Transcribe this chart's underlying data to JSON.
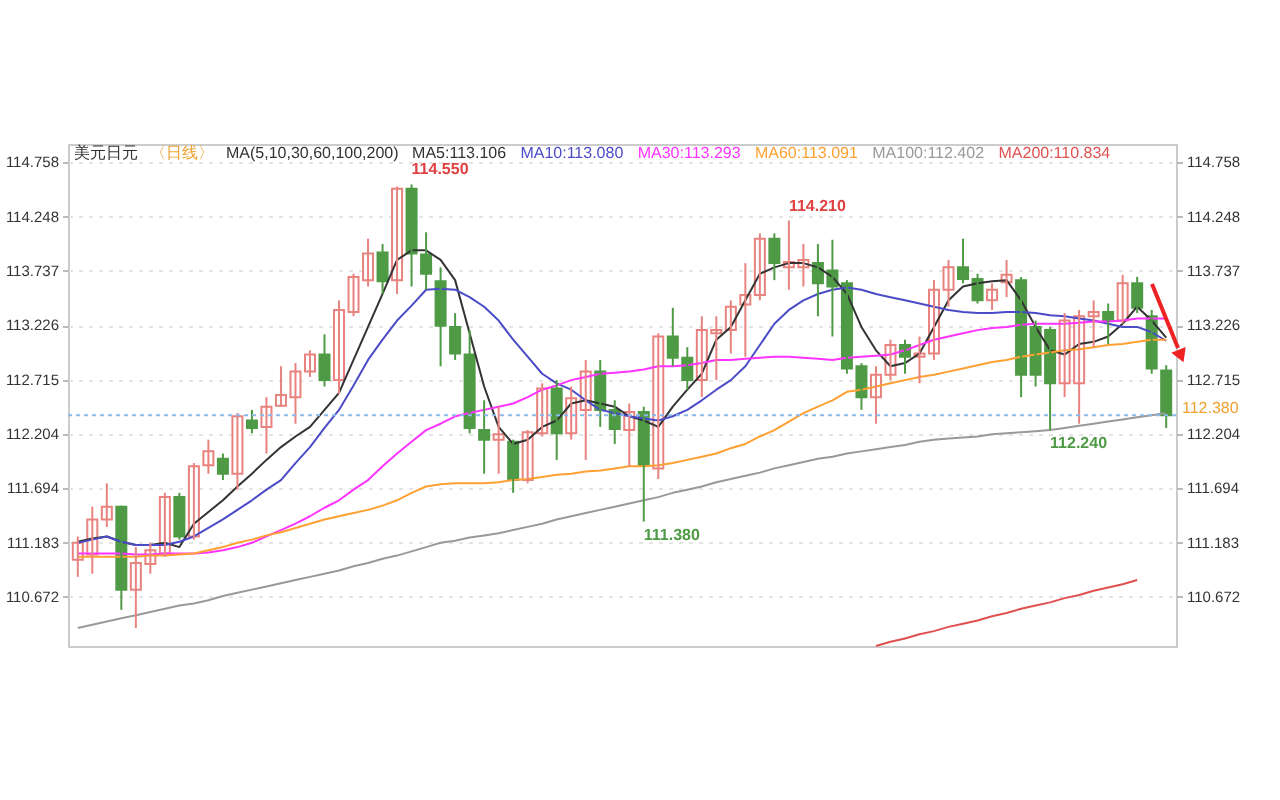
{
  "chart_data": {
    "type": "candlestick",
    "title": "美元日元",
    "subtitle": "〈日线〉",
    "annotations": [
      "MA(5,10,30,60,100,200)",
      "114.550",
      "111.380",
      "112.240",
      "114.210"
    ],
    "categories": [
      null,
      null,
      null,
      null,
      null,
      null,
      null,
      null,
      null,
      null,
      null,
      null,
      null,
      null,
      null,
      null,
      null,
      null,
      null,
      null,
      null,
      null,
      null,
      null,
      null,
      null,
      null,
      null,
      null,
      null,
      null,
      null,
      null,
      null,
      null,
      null,
      null,
      null,
      null,
      null,
      null,
      null,
      null,
      null,
      null,
      null,
      null,
      null,
      null,
      null,
      null,
      null,
      null,
      null,
      null,
      null,
      null,
      null,
      null,
      null,
      null,
      null,
      null,
      null,
      null,
      null,
      null,
      null,
      null,
      null,
      null,
      null,
      null,
      null,
      null,
      null
    ],
    "ohlc": [
      [
        111.02,
        111.24,
        110.86,
        111.18
      ],
      [
        111.07,
        111.52,
        110.89,
        111.4
      ],
      [
        111.4,
        111.74,
        111.33,
        111.52
      ],
      [
        111.52,
        111.53,
        110.55,
        110.74
      ],
      [
        110.74,
        111.14,
        110.38,
        110.99
      ],
      [
        110.98,
        111.18,
        110.89,
        111.11
      ],
      [
        111.08,
        111.65,
        111.05,
        111.61
      ],
      [
        111.61,
        111.65,
        111.21,
        111.24
      ],
      [
        111.24,
        111.93,
        111.21,
        111.9
      ],
      [
        111.91,
        112.15,
        111.83,
        112.04
      ],
      [
        111.97,
        112.02,
        111.77,
        111.83
      ],
      [
        111.83,
        112.4,
        111.68,
        112.37
      ],
      [
        112.33,
        112.43,
        112.21,
        112.26
      ],
      [
        112.27,
        112.55,
        112.02,
        112.46
      ],
      [
        112.47,
        112.84,
        112.46,
        112.57
      ],
      [
        112.55,
        112.87,
        112.3,
        112.79
      ],
      [
        112.79,
        112.99,
        112.74,
        112.95
      ],
      [
        112.95,
        113.14,
        112.65,
        112.71
      ],
      [
        112.71,
        113.46,
        112.58,
        113.37
      ],
      [
        113.35,
        113.71,
        113.31,
        113.68
      ],
      [
        113.65,
        114.04,
        113.59,
        113.9
      ],
      [
        113.91,
        113.99,
        113.52,
        113.64
      ],
      [
        113.65,
        114.53,
        113.52,
        114.51
      ],
      [
        114.51,
        114.55,
        113.59,
        113.9
      ],
      [
        113.89,
        114.1,
        113.56,
        113.71
      ],
      [
        113.64,
        113.77,
        112.84,
        113.22
      ],
      [
        113.21,
        113.34,
        112.9,
        112.96
      ],
      [
        112.95,
        113.18,
        112.21,
        112.26
      ],
      [
        112.24,
        112.52,
        111.83,
        112.15
      ],
      [
        112.15,
        112.46,
        111.83,
        112.2
      ],
      [
        112.13,
        112.15,
        111.65,
        111.77
      ],
      [
        111.77,
        112.24,
        111.74,
        112.22
      ],
      [
        112.21,
        112.68,
        112.18,
        112.63
      ],
      [
        112.63,
        112.71,
        111.96,
        112.21
      ],
      [
        112.21,
        112.65,
        112.15,
        112.54
      ],
      [
        112.43,
        112.9,
        111.96,
        112.79
      ],
      [
        112.79,
        112.9,
        112.27,
        112.43
      ],
      [
        112.43,
        112.52,
        112.11,
        112.25
      ],
      [
        112.24,
        112.49,
        111.9,
        112.41
      ],
      [
        112.41,
        112.46,
        111.38,
        111.91
      ],
      [
        111.88,
        113.15,
        111.78,
        113.12
      ],
      [
        113.12,
        113.39,
        112.84,
        112.92
      ],
      [
        112.92,
        113.02,
        112.62,
        112.71
      ],
      [
        112.71,
        113.31,
        112.55,
        113.18
      ],
      [
        113.15,
        113.31,
        112.71,
        113.18
      ],
      [
        113.18,
        113.46,
        112.96,
        113.4
      ],
      [
        113.42,
        113.81,
        112.93,
        113.51
      ],
      [
        113.51,
        114.09,
        113.46,
        114.04
      ],
      [
        114.04,
        114.09,
        113.65,
        113.81
      ],
      [
        113.77,
        114.21,
        113.56,
        113.82
      ],
      [
        113.77,
        113.99,
        113.59,
        113.84
      ],
      [
        113.81,
        113.99,
        113.31,
        113.62
      ],
      [
        113.74,
        114.03,
        113.12,
        113.59
      ],
      [
        113.62,
        113.65,
        112.77,
        112.82
      ],
      [
        112.84,
        112.87,
        112.43,
        112.55
      ],
      [
        112.55,
        112.84,
        112.3,
        112.76
      ],
      [
        112.76,
        113.09,
        112.71,
        113.04
      ],
      [
        113.04,
        113.09,
        112.77,
        112.93
      ],
      [
        112.93,
        113.12,
        112.68,
        112.96
      ],
      [
        112.96,
        113.65,
        112.9,
        113.56
      ],
      [
        113.56,
        113.84,
        113.4,
        113.77
      ],
      [
        113.77,
        114.04,
        113.62,
        113.66
      ],
      [
        113.66,
        113.71,
        113.43,
        113.46
      ],
      [
        113.46,
        113.62,
        113.37,
        113.56
      ],
      [
        113.63,
        113.84,
        113.49,
        113.7
      ],
      [
        113.65,
        113.68,
        112.55,
        112.76
      ],
      [
        113.21,
        113.27,
        112.65,
        112.76
      ],
      [
        113.18,
        113.21,
        112.24,
        112.68
      ],
      [
        112.68,
        113.34,
        112.55,
        113.27
      ],
      [
        112.68,
        113.37,
        112.3,
        113.31
      ],
      [
        113.31,
        113.46,
        113.02,
        113.35
      ],
      [
        113.35,
        113.43,
        113.05,
        113.27
      ],
      [
        113.27,
        113.7,
        113.24,
        113.62
      ],
      [
        113.62,
        113.68,
        113.34,
        113.39
      ],
      [
        113.31,
        113.37,
        112.77,
        112.82
      ],
      [
        112.8,
        112.85,
        112.26,
        112.38
      ]
    ],
    "colors": [
      "#e8837f",
      "#e8837f",
      "#e8837f",
      "#4f9a45",
      "#e8837f",
      "#e8837f",
      "#e8837f",
      "#4f9a45",
      "#e8837f",
      "#e8837f",
      "#4f9a45",
      "#e8837f",
      "#4f9a45",
      "#e8837f",
      "#e8837f",
      "#e8837f",
      "#e8837f",
      "#4f9a45",
      "#e8837f",
      "#e8837f",
      "#e8837f",
      "#4f9a45",
      "#e8837f",
      "#4f9a45",
      "#4f9a45",
      "#4f9a45",
      "#4f9a45",
      "#4f9a45",
      "#4f9a45",
      "#e8837f",
      "#4f9a45",
      "#e8837f",
      "#e8837f",
      "#4f9a45",
      "#e8837f",
      "#e8837f",
      "#4f9a45",
      "#4f9a45",
      "#e8837f",
      "#4f9a45",
      "#e8837f",
      "#4f9a45",
      "#4f9a45",
      "#e8837f",
      "#e8837f",
      "#e8837f",
      "#e8837f",
      "#e8837f",
      "#4f9a45",
      "#e8837f",
      "#e8837f",
      "#4f9a45",
      "#4f9a45",
      "#4f9a45",
      "#4f9a45",
      "#e8837f",
      "#e8837f",
      "#4f9a45",
      "#e8837f",
      "#e8837f",
      "#e8837f",
      "#4f9a45",
      "#4f9a45",
      "#e8837f",
      "#e8837f",
      "#4f9a45",
      "#4f9a45",
      "#4f9a45",
      "#e8837f",
      "#e8837f",
      "#e8837f",
      "#4f9a45",
      "#e8837f",
      "#4f9a45",
      "#4f9a45",
      "#4f9a45"
    ],
    "series": [
      {
        "name": "MA5:113.106",
        "type": "line",
        "color": "#333333",
        "values": [
          111.19,
          111.22,
          111.24,
          111.19,
          111.16,
          111.16,
          111.18,
          111.14,
          111.36,
          111.47,
          111.58,
          111.71,
          111.83,
          111.96,
          112.08,
          112.18,
          112.27,
          112.43,
          112.59,
          112.9,
          113.21,
          113.52,
          113.84,
          113.93,
          113.93,
          113.84,
          113.65,
          113.15,
          112.65,
          112.27,
          112.11,
          112.15,
          112.27,
          112.33,
          112.49,
          112.52,
          112.49,
          112.46,
          112.37,
          112.33,
          112.27,
          112.46,
          112.62,
          112.77,
          113.09,
          113.21,
          113.46,
          113.71,
          113.77,
          113.81,
          113.81,
          113.77,
          113.68,
          113.52,
          113.21,
          112.99,
          112.84,
          112.87,
          112.96,
          113.21,
          113.46,
          113.59,
          113.62,
          113.64,
          113.65,
          113.46,
          113.21,
          112.99,
          112.95,
          113.05,
          113.07,
          113.12,
          113.24,
          113.4,
          113.27,
          113.11
        ]
      },
      {
        "name": "MA10:113.080",
        "type": "line",
        "color": "#4b4bc8",
        "values": [
          111.18,
          111.21,
          111.24,
          111.19,
          111.16,
          111.16,
          111.16,
          111.19,
          111.24,
          111.32,
          111.4,
          111.49,
          111.58,
          111.68,
          111.77,
          111.93,
          112.08,
          112.26,
          112.43,
          112.66,
          112.9,
          113.09,
          113.27,
          113.41,
          113.56,
          113.57,
          113.56,
          113.49,
          113.4,
          113.27,
          113.09,
          112.93,
          112.77,
          112.68,
          112.62,
          112.52,
          112.43,
          112.4,
          112.37,
          112.35,
          112.33,
          112.37,
          112.43,
          112.52,
          112.62,
          112.71,
          112.84,
          113.04,
          113.24,
          113.37,
          113.46,
          113.52,
          113.56,
          113.58,
          113.56,
          113.52,
          113.49,
          113.46,
          113.43,
          113.4,
          113.37,
          113.35,
          113.34,
          113.34,
          113.35,
          113.35,
          113.34,
          113.32,
          113.31,
          113.29,
          113.27,
          113.24,
          113.21,
          113.21,
          113.16,
          113.08
        ]
      },
      {
        "name": "MA30:113.293",
        "type": "line",
        "color": "#ff33ff",
        "values": [
          111.08,
          111.08,
          111.08,
          111.08,
          111.07,
          111.07,
          111.08,
          111.08,
          111.08,
          111.09,
          111.11,
          111.14,
          111.18,
          111.24,
          111.3,
          111.36,
          111.43,
          111.51,
          111.58,
          111.68,
          111.77,
          111.9,
          112.02,
          112.13,
          112.24,
          112.3,
          112.37,
          112.4,
          112.43,
          112.46,
          112.49,
          112.55,
          112.62,
          112.66,
          112.71,
          112.74,
          112.77,
          112.78,
          112.79,
          112.81,
          112.84,
          112.84,
          112.85,
          112.87,
          112.9,
          112.9,
          112.91,
          112.92,
          112.93,
          112.93,
          112.92,
          112.91,
          112.9,
          112.92,
          112.93,
          112.94,
          112.95,
          112.99,
          113.04,
          113.09,
          113.12,
          113.15,
          113.18,
          113.2,
          113.21,
          113.23,
          113.24,
          113.24,
          113.24,
          113.25,
          113.26,
          113.26,
          113.27,
          113.29,
          113.29,
          113.29
        ]
      },
      {
        "name": "MA60:113.091",
        "type": "line",
        "color": "#ffa033",
        "values": [
          111.05,
          111.05,
          111.05,
          111.05,
          111.05,
          111.06,
          111.06,
          111.07,
          111.08,
          111.11,
          111.14,
          111.18,
          111.21,
          111.25,
          111.28,
          111.32,
          111.36,
          111.4,
          111.43,
          111.46,
          111.49,
          111.53,
          111.58,
          111.65,
          111.71,
          111.73,
          111.74,
          111.74,
          111.74,
          111.75,
          111.77,
          111.78,
          111.8,
          111.82,
          111.83,
          111.85,
          111.86,
          111.88,
          111.9,
          111.9,
          111.91,
          111.93,
          111.96,
          111.99,
          112.02,
          112.07,
          112.11,
          112.18,
          112.24,
          112.32,
          112.4,
          112.46,
          112.52,
          112.6,
          112.62,
          112.65,
          112.68,
          112.71,
          112.74,
          112.76,
          112.79,
          112.82,
          112.85,
          112.88,
          112.9,
          112.93,
          112.95,
          112.97,
          112.99,
          113.0,
          113.02,
          113.04,
          113.05,
          113.07,
          113.09,
          113.09
        ]
      },
      {
        "name": "MA100:112.402",
        "type": "line",
        "color": "#999999",
        "values": [
          110.38,
          110.41,
          110.44,
          110.47,
          110.5,
          110.53,
          110.56,
          110.59,
          110.61,
          110.64,
          110.68,
          110.71,
          110.74,
          110.77,
          110.8,
          110.83,
          110.86,
          110.89,
          110.92,
          110.96,
          110.99,
          111.03,
          111.06,
          111.1,
          111.14,
          111.18,
          111.2,
          111.23,
          111.25,
          111.27,
          111.3,
          111.33,
          111.36,
          111.4,
          111.43,
          111.46,
          111.49,
          111.52,
          111.55,
          111.58,
          111.61,
          111.65,
          111.68,
          111.71,
          111.75,
          111.78,
          111.81,
          111.84,
          111.88,
          111.91,
          111.94,
          111.97,
          111.99,
          112.02,
          112.04,
          112.06,
          112.08,
          112.1,
          112.13,
          112.15,
          112.16,
          112.17,
          112.18,
          112.2,
          112.21,
          112.22,
          112.23,
          112.24,
          112.26,
          112.28,
          112.3,
          112.32,
          112.34,
          112.36,
          112.38,
          112.4
        ]
      },
      {
        "name": "MA200:110.834",
        "type": "line",
        "color": "#e05050",
        "values": [
          null,
          null,
          null,
          null,
          null,
          null,
          null,
          null,
          null,
          null,
          null,
          null,
          null,
          null,
          null,
          null,
          null,
          null,
          null,
          null,
          null,
          null,
          null,
          null,
          null,
          null,
          null,
          null,
          null,
          null,
          null,
          null,
          null,
          null,
          null,
          null,
          null,
          null,
          null,
          null,
          null,
          null,
          null,
          null,
          null,
          null,
          null,
          null,
          null,
          null,
          null,
          null,
          null,
          null,
          null,
          110.21,
          110.25,
          110.28,
          110.32,
          110.35,
          110.39,
          110.42,
          110.45,
          110.49,
          110.52,
          110.56,
          110.59,
          110.62,
          110.66,
          110.69,
          110.73,
          110.76,
          110.79,
          110.83,
          null,
          null
        ]
      }
    ],
    "ylim": [
      110.21,
      114.93
    ],
    "yticks": [
      110.672,
      111.183,
      111.694,
      112.204,
      112.715,
      113.226,
      113.737,
      114.248,
      114.758
    ],
    "y2lim": [
      110.21,
      114.93
    ],
    "y2ticks": [
      110.672,
      111.183,
      111.694,
      112.204,
      112.715,
      113.226,
      113.737,
      114.248,
      114.758
    ],
    "ref_lines": [
      {
        "axis": "y",
        "value": 112.38,
        "label": "112.380",
        "color": "#8bb8ea",
        "line_style": "dotted"
      }
    ],
    "grid": "y",
    "legend": "top",
    "tick_labels": "y",
    "line_style": "solid",
    "marker": "none"
  }
}
